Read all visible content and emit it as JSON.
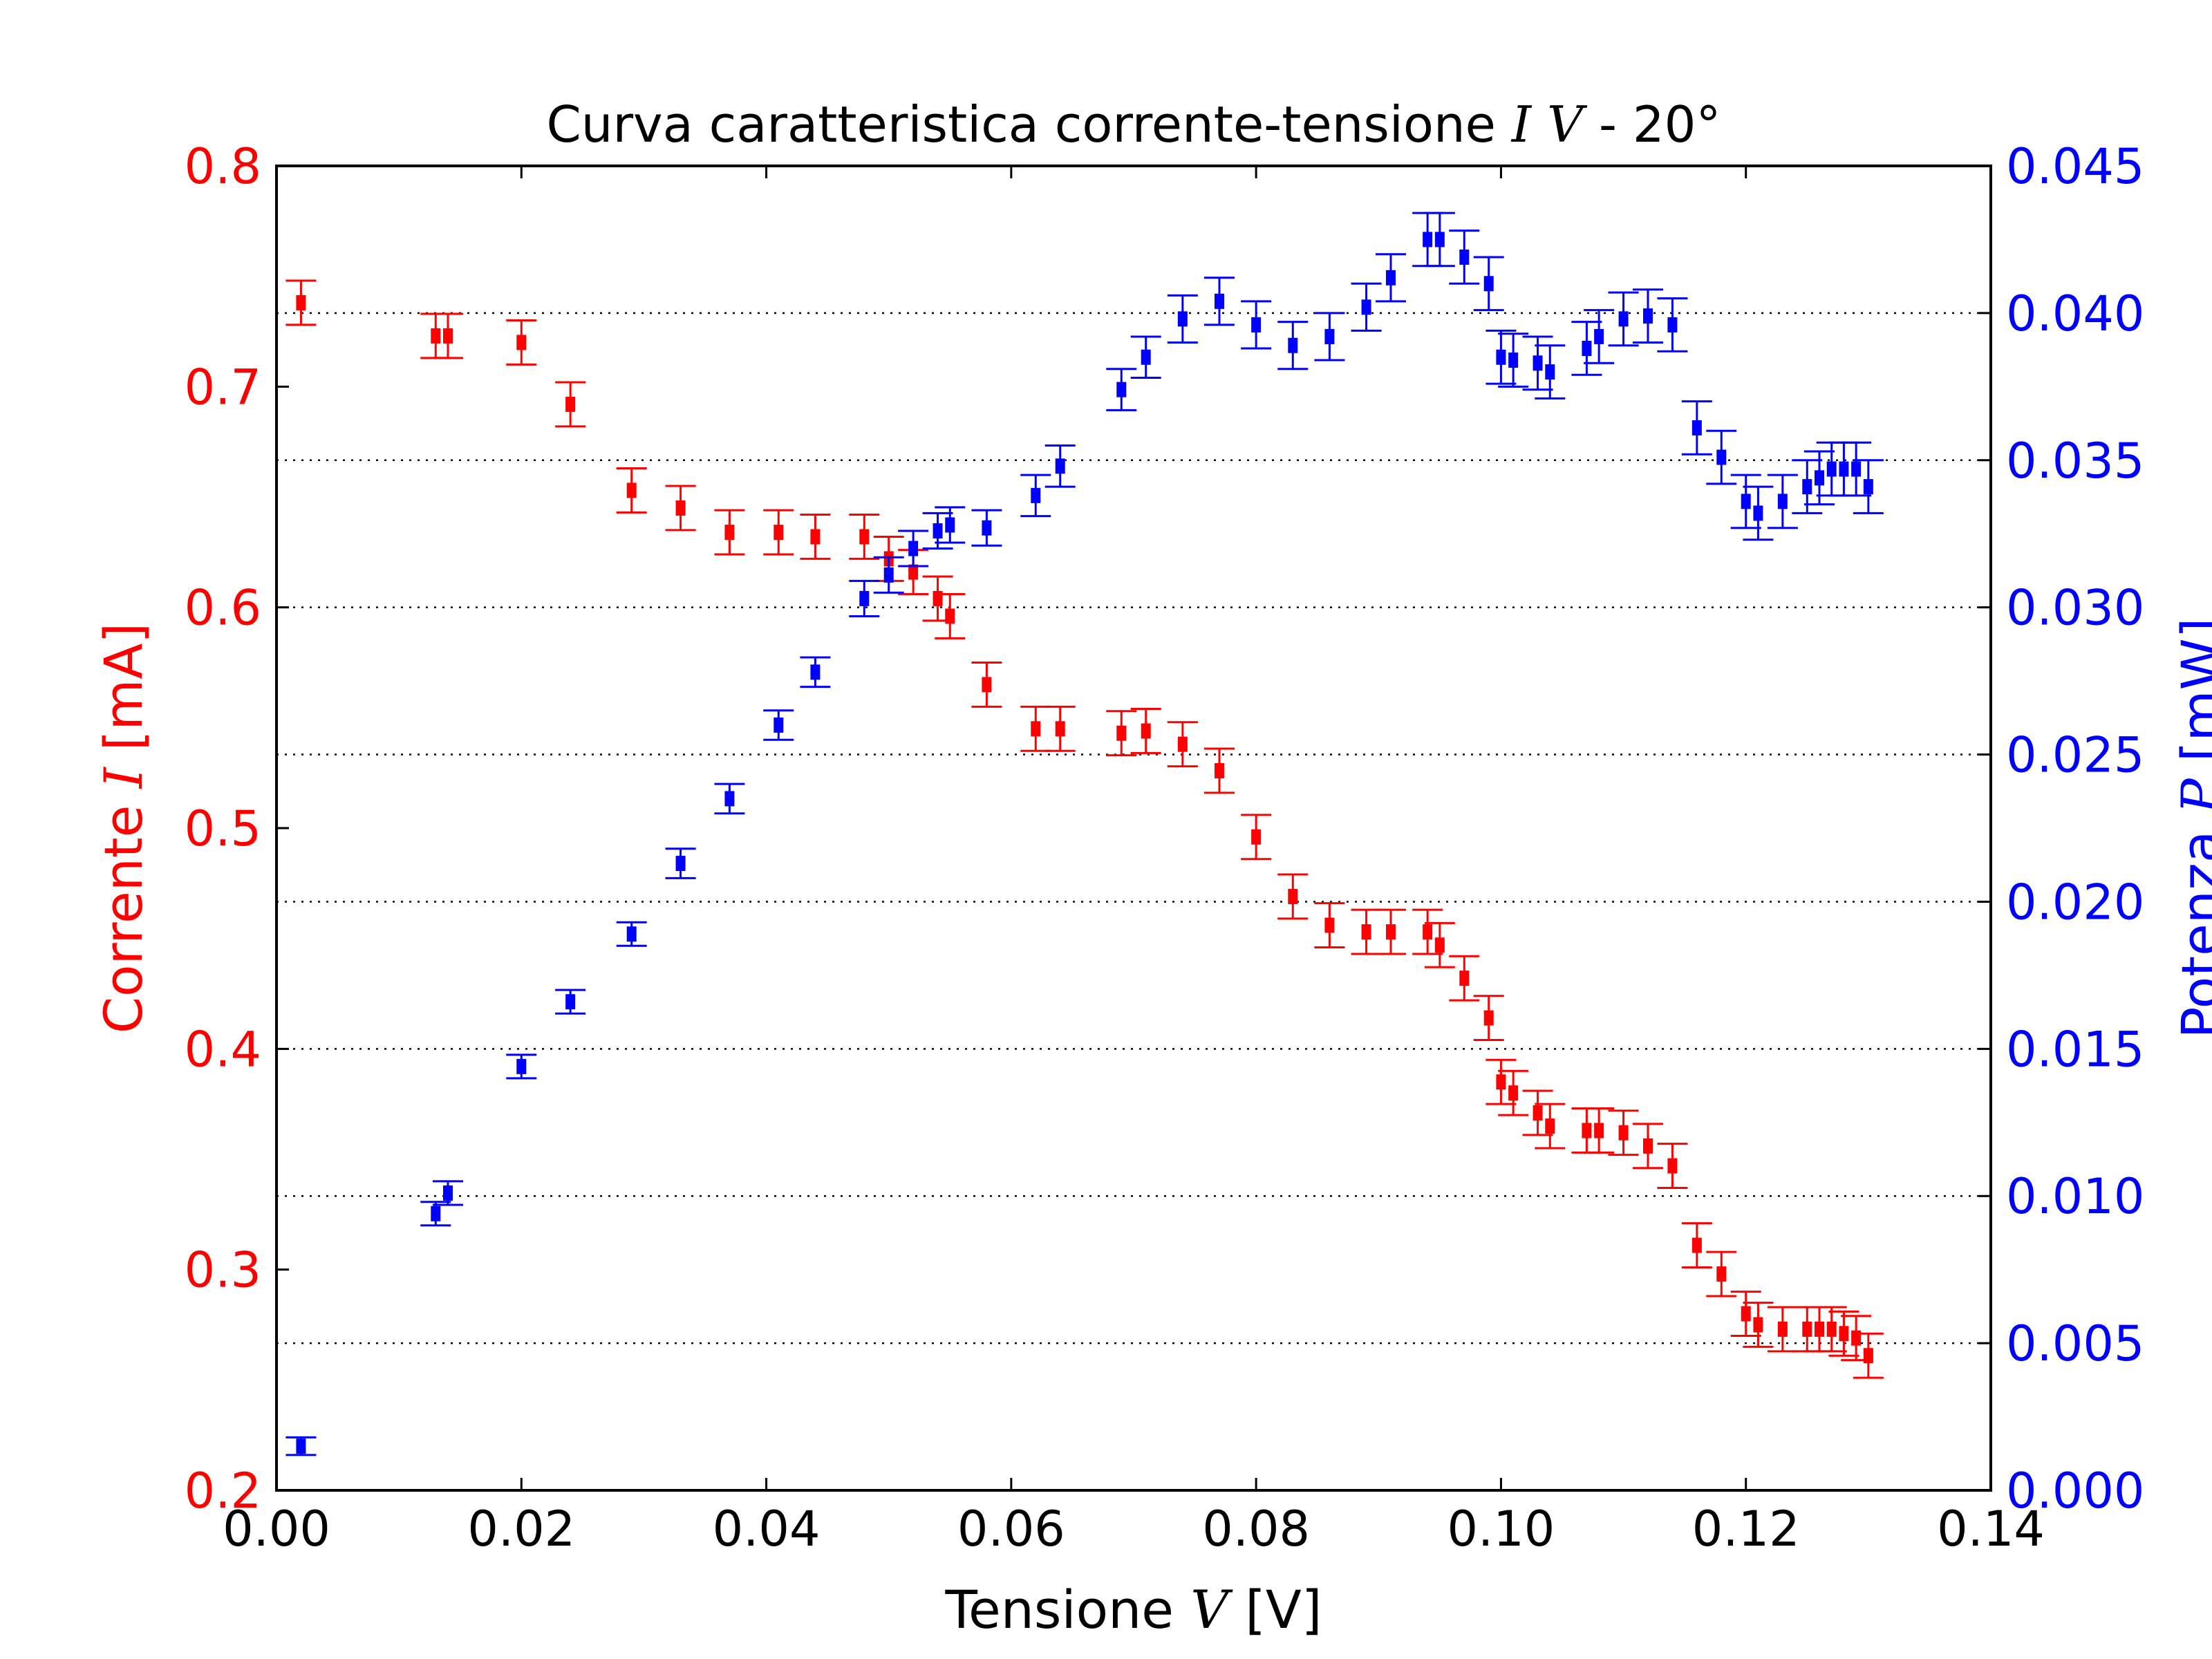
{
  "chart_data": {
    "type": "scatter",
    "title": {
      "prefix": "Curva caratteristica corrente-tensione ",
      "math": "I V",
      "suffix": " - 20°"
    },
    "xlabel": {
      "prefix": "Tensione ",
      "math": "V",
      "suffix": " [V]"
    },
    "ylabel_left": {
      "prefix": "Corrente ",
      "math": "I",
      "suffix": " [mA]"
    },
    "ylabel_right": {
      "prefix": "Potenza ",
      "math": "P",
      "suffix": " [mW]"
    },
    "xlim": [
      0.0,
      0.14
    ],
    "ylim_left": [
      0.2,
      0.8
    ],
    "ylim_right": [
      0.0,
      0.045
    ],
    "x_ticks": [
      "0.00",
      "0.02",
      "0.04",
      "0.06",
      "0.08",
      "0.10",
      "0.12",
      "0.14"
    ],
    "y_left_ticks": [
      "0.2",
      "0.3",
      "0.4",
      "0.5",
      "0.6",
      "0.7",
      "0.8"
    ],
    "y_right_ticks": [
      "0.000",
      "0.005",
      "0.010",
      "0.015",
      "0.020",
      "0.025",
      "0.030",
      "0.035",
      "0.040",
      "0.045"
    ],
    "grid": "horizontal dotted (right axis)",
    "colors": {
      "current": "#ff0000",
      "power": "#0000ff",
      "axes": "#000000"
    },
    "series": [
      {
        "axis": "left",
        "color": "#ff0000",
        "error": 0.01,
        "points": [
          [
            0.002,
            0.738
          ],
          [
            0.013,
            0.723
          ],
          [
            0.014,
            0.723
          ],
          [
            0.02,
            0.72
          ],
          [
            0.024,
            0.692
          ],
          [
            0.029,
            0.653
          ],
          [
            0.033,
            0.645
          ],
          [
            0.037,
            0.634
          ],
          [
            0.041,
            0.634
          ],
          [
            0.044,
            0.632
          ],
          [
            0.048,
            0.632
          ],
          [
            0.05,
            0.622
          ],
          [
            0.052,
            0.616
          ],
          [
            0.054,
            0.604
          ],
          [
            0.055,
            0.596
          ],
          [
            0.058,
            0.565
          ],
          [
            0.062,
            0.545
          ],
          [
            0.064,
            0.545
          ],
          [
            0.069,
            0.543
          ],
          [
            0.071,
            0.544
          ],
          [
            0.074,
            0.538
          ],
          [
            0.077,
            0.526
          ],
          [
            0.08,
            0.496
          ],
          [
            0.083,
            0.469
          ],
          [
            0.086,
            0.456
          ],
          [
            0.089,
            0.453
          ],
          [
            0.091,
            0.453
          ],
          [
            0.094,
            0.453
          ],
          [
            0.095,
            0.447
          ],
          [
            0.097,
            0.432
          ],
          [
            0.099,
            0.414
          ],
          [
            0.1,
            0.385
          ],
          [
            0.101,
            0.38
          ],
          [
            0.103,
            0.371
          ],
          [
            0.104,
            0.365
          ],
          [
            0.107,
            0.363
          ],
          [
            0.108,
            0.363
          ],
          [
            0.11,
            0.362
          ],
          [
            0.112,
            0.356
          ],
          [
            0.114,
            0.347
          ],
          [
            0.116,
            0.311
          ],
          [
            0.118,
            0.298
          ],
          [
            0.12,
            0.28
          ],
          [
            0.121,
            0.275
          ],
          [
            0.123,
            0.273
          ],
          [
            0.125,
            0.273
          ],
          [
            0.126,
            0.273
          ],
          [
            0.127,
            0.273
          ],
          [
            0.128,
            0.271
          ],
          [
            0.129,
            0.269
          ],
          [
            0.13,
            0.261
          ]
        ]
      },
      {
        "axis": "right",
        "color": "#0000ff",
        "points": [
          [
            0.002,
            0.0015,
            0.0003
          ],
          [
            0.013,
            0.0094,
            0.0004
          ],
          [
            0.014,
            0.0101,
            0.0004
          ],
          [
            0.02,
            0.0144,
            0.0004
          ],
          [
            0.024,
            0.0166,
            0.0004
          ],
          [
            0.029,
            0.0189,
            0.0004
          ],
          [
            0.033,
            0.0213,
            0.0005
          ],
          [
            0.037,
            0.0235,
            0.0005
          ],
          [
            0.041,
            0.026,
            0.0005
          ],
          [
            0.044,
            0.0278,
            0.0005
          ],
          [
            0.048,
            0.0303,
            0.0006
          ],
          [
            0.05,
            0.0311,
            0.0006
          ],
          [
            0.052,
            0.032,
            0.0006
          ],
          [
            0.054,
            0.0326,
            0.0006
          ],
          [
            0.055,
            0.0328,
            0.0006
          ],
          [
            0.058,
            0.0327,
            0.0006
          ],
          [
            0.062,
            0.0338,
            0.0007
          ],
          [
            0.064,
            0.0348,
            0.0007
          ],
          [
            0.069,
            0.0374,
            0.0007
          ],
          [
            0.071,
            0.0385,
            0.0007
          ],
          [
            0.074,
            0.0398,
            0.0008
          ],
          [
            0.077,
            0.0404,
            0.0008
          ],
          [
            0.08,
            0.0396,
            0.0008
          ],
          [
            0.083,
            0.0389,
            0.0008
          ],
          [
            0.086,
            0.0392,
            0.0008
          ],
          [
            0.089,
            0.0402,
            0.0008
          ],
          [
            0.091,
            0.0412,
            0.0008
          ],
          [
            0.094,
            0.0425,
            0.0009
          ],
          [
            0.095,
            0.0425,
            0.0009
          ],
          [
            0.097,
            0.0419,
            0.0009
          ],
          [
            0.099,
            0.041,
            0.0009
          ],
          [
            0.1,
            0.0385,
            0.0009
          ],
          [
            0.101,
            0.0384,
            0.0009
          ],
          [
            0.103,
            0.0383,
            0.0009
          ],
          [
            0.104,
            0.038,
            0.0009
          ],
          [
            0.107,
            0.0388,
            0.0009
          ],
          [
            0.108,
            0.0392,
            0.0009
          ],
          [
            0.11,
            0.0398,
            0.0009
          ],
          [
            0.112,
            0.0399,
            0.0009
          ],
          [
            0.114,
            0.0396,
            0.0009
          ],
          [
            0.116,
            0.0361,
            0.0009
          ],
          [
            0.118,
            0.0351,
            0.0009
          ],
          [
            0.12,
            0.0336,
            0.0009
          ],
          [
            0.121,
            0.0332,
            0.0009
          ],
          [
            0.123,
            0.0336,
            0.0009
          ],
          [
            0.125,
            0.0341,
            0.0009
          ],
          [
            0.126,
            0.0344,
            0.0009
          ],
          [
            0.127,
            0.0347,
            0.0009
          ],
          [
            0.128,
            0.0347,
            0.0009
          ],
          [
            0.129,
            0.0347,
            0.0009
          ],
          [
            0.13,
            0.0341,
            0.0009
          ]
        ]
      }
    ]
  }
}
